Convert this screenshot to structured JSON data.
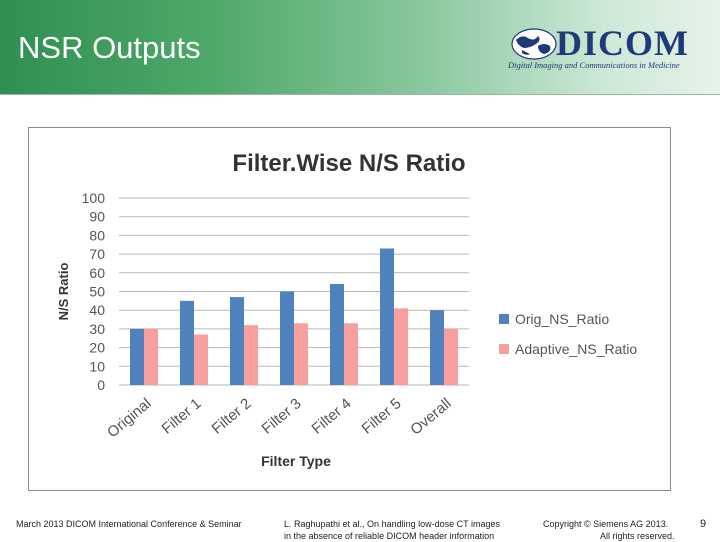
{
  "slide": {
    "title": "NSR Outputs",
    "page_number": "9"
  },
  "logo": {
    "name": "DICOM",
    "tagline": "Digital Imaging and Communications in Medicine"
  },
  "footer": {
    "conference": "March 2013 DICOM International Conference & Seminar",
    "citation_line1": "L. Raghupathi et al., On handling low-dose CT images",
    "citation_line2": "in the absence of reliable DICOM header information",
    "copyright_line1": "Copyright © Siemens AG 2013.",
    "copyright_line2": "All rights reserved."
  },
  "colors": {
    "orig": "#4f81bd",
    "adaptive": "#f79f9f",
    "grid": "#b7b7b7"
  },
  "chart_data": {
    "type": "bar",
    "title": "Filter.Wise N/S Ratio",
    "xlabel": "Filter Type",
    "ylabel": "N/S Ratio",
    "categories": [
      "Original",
      "Filter 1",
      "Filter 2",
      "Filter 3",
      "Filter 4",
      "Filter 5",
      "Overall"
    ],
    "series": [
      {
        "name": "Orig_NS_Ratio",
        "values": [
          30,
          45,
          47,
          50,
          54,
          73,
          40
        ]
      },
      {
        "name": "Adaptive_NS_Ratio",
        "values": [
          30,
          27,
          32,
          33,
          33,
          41,
          30
        ]
      }
    ],
    "ylim": [
      0,
      100
    ],
    "yticks": [
      0,
      10,
      20,
      30,
      40,
      50,
      60,
      70,
      80,
      90,
      100
    ],
    "grid": true,
    "legend_position": "right"
  }
}
